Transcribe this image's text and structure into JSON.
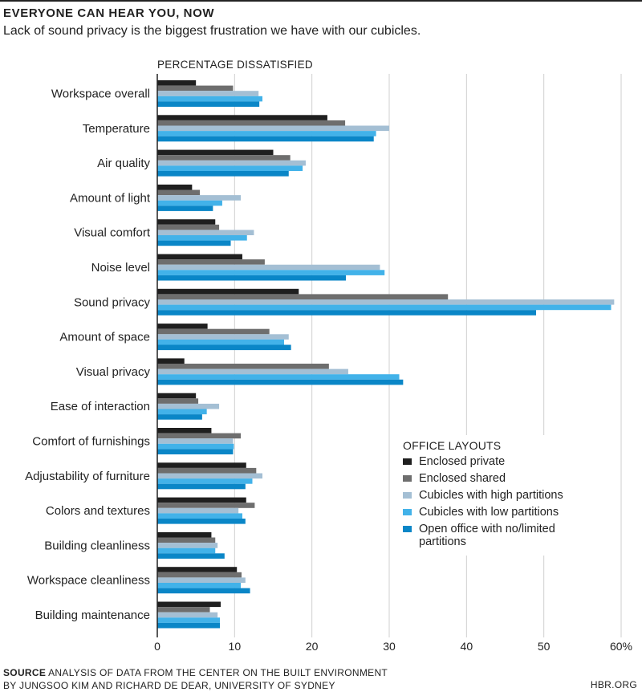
{
  "header": {
    "title": "EVERYONE CAN HEAR YOU, NOW",
    "subtitle": "Lack of sound privacy is the biggest frustration we have with our cubicles."
  },
  "footer": {
    "source_label": "SOURCE",
    "source_line1": "ANALYSIS OF DATA FROM THE CENTER ON THE BUILT ENVIRONMENT",
    "source_line2": "BY JUNGSOO KIM AND RICHARD DE DEAR, UNIVERSITY OF SYDNEY",
    "brand": "HBR.ORG"
  },
  "colors": {
    "background": "#ffffff",
    "text": "#222222",
    "grid": "#cfcfcf",
    "axis": "#222222"
  },
  "chart_data": {
    "type": "bar",
    "orientation": "horizontal",
    "title": "EVERYONE CAN HEAR YOU, NOW",
    "xlabel": "PERCENTAGE DISSATISFIED",
    "ylabel": "",
    "xlim": [
      0,
      60
    ],
    "xticks": [
      0,
      10,
      20,
      30,
      40,
      50,
      60
    ],
    "xtick_labels": [
      "0",
      "10",
      "20",
      "30",
      "40",
      "50",
      "60%"
    ],
    "grid": true,
    "legend": {
      "title": "OFFICE LAYOUTS",
      "position": "bottom-right"
    },
    "categories": [
      "Workspace overall",
      "Temperature",
      "Air quality",
      "Amount of light",
      "Visual comfort",
      "Noise level",
      "Sound privacy",
      "Amount of space",
      "Visual privacy",
      "Ease of interaction",
      "Comfort of furnishings",
      "Adjustability of furniture",
      "Colors and textures",
      "Building cleanliness",
      "Workspace cleanliness",
      "Building maintenance"
    ],
    "series": [
      {
        "name": "Enclosed private",
        "color": "#1f1f1f",
        "values": [
          5,
          22,
          15,
          4.5,
          7.5,
          11,
          18.3,
          6.5,
          3.5,
          5,
          7,
          11.5,
          11.5,
          7,
          10.3,
          8.2
        ]
      },
      {
        "name": "Enclosed shared",
        "color": "#6e6e6e",
        "values": [
          9.8,
          24.3,
          17.2,
          5.5,
          8,
          13.9,
          37.6,
          14.5,
          22.2,
          5.3,
          10.8,
          12.8,
          12.6,
          7.5,
          10.9,
          6.8
        ]
      },
      {
        "name": "Cubicles with high partitions",
        "color": "#a4bfd4",
        "values": [
          13.1,
          30,
          19.2,
          10.8,
          12.5,
          28.8,
          59.1,
          17,
          24.7,
          8,
          9.8,
          13.6,
          10.5,
          7.8,
          11.4,
          7.8
        ]
      },
      {
        "name": "Cubicles with low partitions",
        "color": "#42b2e9",
        "values": [
          13.6,
          28.3,
          18.8,
          8.4,
          11.6,
          29.4,
          58.7,
          16.4,
          31.3,
          6.4,
          9.9,
          12.3,
          11,
          7.5,
          10.8,
          8.1
        ]
      },
      {
        "name": "Open office with no/limited partitions",
        "color": "#0a86c7",
        "values": [
          13.2,
          28,
          17,
          7.2,
          9.5,
          24.4,
          49,
          17.3,
          31.8,
          5.8,
          9.8,
          11.4,
          11.4,
          8.7,
          12,
          8.1
        ]
      }
    ]
  }
}
